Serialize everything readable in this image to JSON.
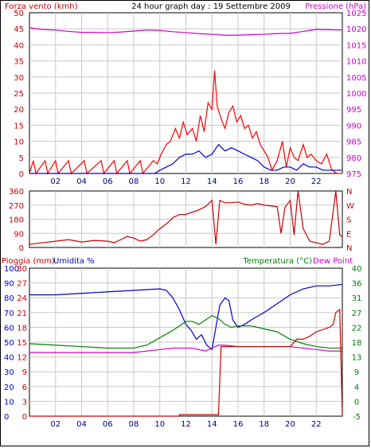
{
  "chart_data": [
    {
      "type": "line",
      "title": "24 hour graph day : 19 Settembre 2009",
      "left_label": "Forza vento (kmh)",
      "right_label": "Pressione (hPa)",
      "xticks": [
        "02",
        "04",
        "06",
        "08",
        "10",
        "12",
        "14",
        "16",
        "18",
        "20",
        "22"
      ],
      "yticks_left": [
        "0",
        "5",
        "10",
        "15",
        "20",
        "25",
        "30",
        "35",
        "40",
        "45",
        "50"
      ],
      "yticks_right": [
        "975",
        "980",
        "985",
        "990",
        "995",
        "1000",
        "1005",
        "1010",
        "1015",
        "1020",
        "1025"
      ],
      "xlim": [
        0,
        24
      ],
      "ylim_left": [
        0,
        50
      ],
      "ylim_right": [
        975,
        1025
      ],
      "series": [
        {
          "axis": "right",
          "color": "#cc00cc",
          "points": [
            [
              0,
              1020.3
            ],
            [
              1,
              1019.8
            ],
            [
              2,
              1019.6
            ],
            [
              3,
              1019.2
            ],
            [
              4,
              1018.9
            ],
            [
              5,
              1018.9
            ],
            [
              6,
              1018.8
            ],
            [
              7,
              1019.0
            ],
            [
              8,
              1019.3
            ],
            [
              9,
              1019.6
            ],
            [
              10,
              1019.5
            ],
            [
              11,
              1019.1
            ],
            [
              12,
              1018.8
            ],
            [
              13,
              1018.5
            ],
            [
              14,
              1018.3
            ],
            [
              15,
              1018.0
            ],
            [
              16,
              1018.0
            ],
            [
              17,
              1018.2
            ],
            [
              18,
              1018.3
            ],
            [
              19,
              1018.5
            ],
            [
              20,
              1018.6
            ],
            [
              21,
              1019.2
            ],
            [
              22,
              1019.8
            ],
            [
              23,
              1019.7
            ],
            [
              24,
              1019.6
            ]
          ]
        },
        {
          "axis": "left",
          "color": "#ff0000",
          "points": [
            [
              0,
              0
            ],
            [
              0.3,
              4
            ],
            [
              0.5,
              0
            ],
            [
              1.2,
              4
            ],
            [
              1.4,
              0
            ],
            [
              2,
              4
            ],
            [
              2.2,
              0
            ],
            [
              3,
              4
            ],
            [
              3.2,
              0
            ],
            [
              4.2,
              4
            ],
            [
              4.4,
              0
            ],
            [
              5.5,
              4
            ],
            [
              5.7,
              0
            ],
            [
              6.5,
              4
            ],
            [
              6.7,
              0
            ],
            [
              7.5,
              4
            ],
            [
              7.7,
              0
            ],
            [
              8.5,
              4
            ],
            [
              8.7,
              0
            ],
            [
              9.5,
              4
            ],
            [
              9.8,
              3
            ],
            [
              10.1,
              6
            ],
            [
              10.5,
              9
            ],
            [
              10.8,
              10
            ],
            [
              11.2,
              14
            ],
            [
              11.5,
              11
            ],
            [
              11.8,
              16
            ],
            [
              12.1,
              12
            ],
            [
              12.5,
              14
            ],
            [
              12.8,
              10
            ],
            [
              13.1,
              18
            ],
            [
              13.4,
              13
            ],
            [
              13.7,
              22
            ],
            [
              14.0,
              20
            ],
            [
              14.2,
              32
            ],
            [
              14.4,
              21
            ],
            [
              14.7,
              17
            ],
            [
              15.0,
              14
            ],
            [
              15.3,
              19
            ],
            [
              15.6,
              21
            ],
            [
              15.9,
              16
            ],
            [
              16.2,
              18
            ],
            [
              16.5,
              14
            ],
            [
              16.8,
              15
            ],
            [
              17.1,
              11
            ],
            [
              17.4,
              13
            ],
            [
              17.7,
              9
            ],
            [
              18.0,
              7
            ],
            [
              18.3,
              5
            ],
            [
              18.6,
              1
            ],
            [
              19.0,
              4
            ],
            [
              19.4,
              10
            ],
            [
              19.7,
              2
            ],
            [
              20.0,
              8
            ],
            [
              20.3,
              5
            ],
            [
              20.6,
              4
            ],
            [
              21.0,
              9
            ],
            [
              21.3,
              5
            ],
            [
              21.6,
              6
            ],
            [
              22.0,
              4
            ],
            [
              22.4,
              3
            ],
            [
              22.8,
              6
            ],
            [
              23.2,
              1
            ],
            [
              23.6,
              0
            ],
            [
              24,
              0
            ]
          ]
        },
        {
          "axis": "left",
          "color": "#0000cc",
          "points": [
            [
              0,
              0
            ],
            [
              9.6,
              0
            ],
            [
              10,
              1
            ],
            [
              10.5,
              2
            ],
            [
              11,
              3
            ],
            [
              11.5,
              5
            ],
            [
              12,
              6
            ],
            [
              12.5,
              6
            ],
            [
              13,
              7
            ],
            [
              13.5,
              5
            ],
            [
              14,
              6
            ],
            [
              14.5,
              9
            ],
            [
              15,
              7
            ],
            [
              15.5,
              8
            ],
            [
              16,
              7
            ],
            [
              16.5,
              6
            ],
            [
              17,
              5
            ],
            [
              17.5,
              4
            ],
            [
              18,
              2
            ],
            [
              18.5,
              1
            ],
            [
              19,
              1
            ],
            [
              19.5,
              2
            ],
            [
              20,
              2
            ],
            [
              20.5,
              1
            ],
            [
              21,
              3
            ],
            [
              21.5,
              2
            ],
            [
              22,
              2
            ],
            [
              22.5,
              1
            ],
            [
              23,
              1
            ],
            [
              23.5,
              1
            ],
            [
              24,
              1
            ]
          ]
        }
      ]
    },
    {
      "type": "line",
      "left_ticks": [
        "0",
        "90",
        "180",
        "270",
        "360"
      ],
      "right_ticks": [
        "N",
        "E",
        "S",
        "W",
        "N"
      ],
      "ylim": [
        0,
        360
      ],
      "series": [
        {
          "color": "#cc0000",
          "points": [
            [
              0,
              20
            ],
            [
              1,
              30
            ],
            [
              2,
              40
            ],
            [
              3,
              50
            ],
            [
              4,
              35
            ],
            [
              5,
              45
            ],
            [
              6,
              40
            ],
            [
              6.5,
              30
            ],
            [
              7,
              50
            ],
            [
              7.5,
              70
            ],
            [
              8,
              60
            ],
            [
              8.5,
              40
            ],
            [
              9,
              50
            ],
            [
              9.5,
              80
            ],
            [
              10,
              120
            ],
            [
              10.5,
              150
            ],
            [
              11,
              190
            ],
            [
              11.5,
              210
            ],
            [
              12,
              210
            ],
            [
              12.5,
              225
            ],
            [
              13,
              240
            ],
            [
              13.5,
              260
            ],
            [
              14,
              300
            ],
            [
              14.3,
              20
            ],
            [
              14.6,
              300
            ],
            [
              15,
              285
            ],
            [
              15.5,
              285
            ],
            [
              16,
              290
            ],
            [
              16.5,
              275
            ],
            [
              17,
              270
            ],
            [
              17.5,
              280
            ],
            [
              18,
              270
            ],
            [
              18.5,
              265
            ],
            [
              19,
              260
            ],
            [
              19.3,
              90
            ],
            [
              19.6,
              255
            ],
            [
              20,
              300
            ],
            [
              20.3,
              80
            ],
            [
              20.6,
              360
            ],
            [
              21,
              120
            ],
            [
              21.5,
              40
            ],
            [
              22,
              30
            ],
            [
              22.5,
              20
            ],
            [
              23,
              40
            ],
            [
              23.5,
              360
            ],
            [
              23.8,
              80
            ],
            [
              24,
              70
            ]
          ]
        }
      ]
    },
    {
      "type": "line",
      "left_label_a": "Pioggia (mm)",
      "left_label_b": "Umidita %",
      "right_label_a": "Temperatura (°C)",
      "right_label_b": "Dew Point",
      "rain_ticks": [
        "0",
        "3",
        "6",
        "9",
        "12",
        "15",
        "18",
        "21",
        "24",
        "27",
        "30"
      ],
      "hum_ticks": [
        "0",
        "10",
        "20",
        "30",
        "40",
        "50",
        "60",
        "70",
        "80",
        "90",
        "100"
      ],
      "temp_ticks": [
        "-5",
        "0",
        "4",
        "9",
        "13",
        "18",
        "22",
        "27",
        "31",
        "36",
        "40"
      ],
      "ylim_hum": [
        0,
        100
      ],
      "series": [
        {
          "name": "Umidita",
          "color": "#0000cc",
          "points": [
            [
              0,
              82
            ],
            [
              2,
              82
            ],
            [
              4,
              83
            ],
            [
              6,
              84
            ],
            [
              8,
              85
            ],
            [
              10,
              86
            ],
            [
              10.5,
              85
            ],
            [
              11,
              80
            ],
            [
              11.5,
              72
            ],
            [
              12,
              62
            ],
            [
              12.4,
              58
            ],
            [
              12.8,
              52
            ],
            [
              13.2,
              55
            ],
            [
              13.6,
              48
            ],
            [
              14,
              45
            ],
            [
              14.3,
              60
            ],
            [
              14.6,
              75
            ],
            [
              15,
              80
            ],
            [
              15.3,
              78
            ],
            [
              15.6,
              65
            ],
            [
              16,
              60
            ],
            [
              16.5,
              62
            ],
            [
              17,
              65
            ],
            [
              18,
              70
            ],
            [
              19,
              76
            ],
            [
              20,
              82
            ],
            [
              21,
              86
            ],
            [
              22,
              88
            ],
            [
              23,
              88
            ],
            [
              24,
              89
            ]
          ]
        },
        {
          "name": "Temperatura",
          "color": "#008000",
          "points": [
            [
              0,
              49
            ],
            [
              2,
              48
            ],
            [
              4,
              47
            ],
            [
              6,
              46
            ],
            [
              8,
              46
            ],
            [
              9,
              48
            ],
            [
              10,
              53
            ],
            [
              11,
              58
            ],
            [
              12,
              64
            ],
            [
              12.5,
              64
            ],
            [
              13,
              62
            ],
            [
              13.5,
              65
            ],
            [
              14,
              68
            ],
            [
              14.5,
              66
            ],
            [
              15,
              62
            ],
            [
              15.5,
              60
            ],
            [
              16,
              61
            ],
            [
              17,
              61
            ],
            [
              18,
              59
            ],
            [
              19,
              57
            ],
            [
              20,
              52
            ],
            [
              21,
              49
            ],
            [
              22,
              47
            ],
            [
              23,
              46
            ],
            [
              24,
              46
            ]
          ]
        },
        {
          "name": "Dew Point",
          "color": "#cc00cc",
          "points": [
            [
              0,
              43
            ],
            [
              2,
              43
            ],
            [
              4,
              43
            ],
            [
              6,
              43
            ],
            [
              8,
              43
            ],
            [
              9,
              44
            ],
            [
              10,
              45
            ],
            [
              11,
              46
            ],
            [
              12,
              46
            ],
            [
              12.5,
              46
            ],
            [
              13,
              45
            ],
            [
              13.5,
              44
            ],
            [
              14,
              46
            ],
            [
              14.5,
              48
            ],
            [
              15,
              48
            ],
            [
              16,
              47
            ],
            [
              17,
              47
            ],
            [
              18,
              47
            ],
            [
              19,
              47
            ],
            [
              20,
              47
            ],
            [
              21,
              46
            ],
            [
              22,
              45
            ],
            [
              23,
              44
            ],
            [
              24,
              44
            ]
          ]
        },
        {
          "name": "Pioggia",
          "color": "#cc0000",
          "points": [
            [
              0,
              0
            ],
            [
              11.5,
              0
            ],
            [
              11.5,
              1
            ],
            [
              14.5,
              1
            ],
            [
              14.7,
              47
            ],
            [
              20,
              47
            ],
            [
              20.5,
              52
            ],
            [
              21,
              52
            ],
            [
              21.5,
              54
            ],
            [
              22,
              57
            ],
            [
              23,
              60
            ],
            [
              23.3,
              62
            ],
            [
              23.5,
              70
            ],
            [
              23.8,
              72
            ],
            [
              24,
              0
            ]
          ]
        }
      ]
    }
  ]
}
